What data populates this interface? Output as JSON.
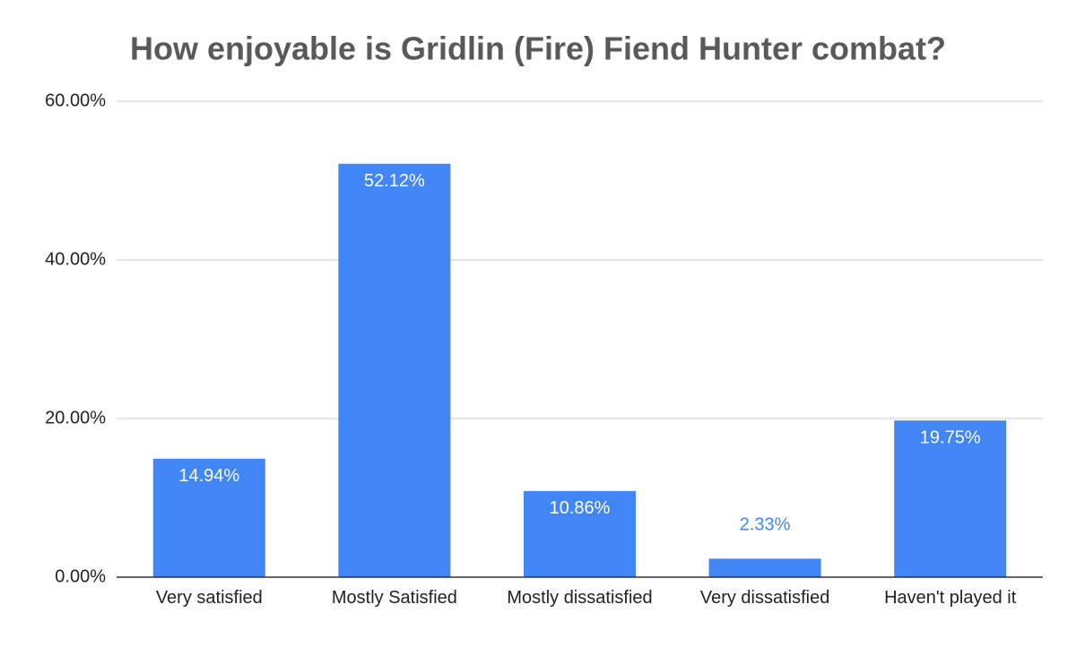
{
  "chart_data": {
    "type": "bar",
    "title": "How enjoyable is Gridlin (Fire) Fiend Hunter combat?",
    "categories": [
      "Very satisfied",
      "Mostly Satisfied",
      "Mostly dissatisfied",
      "Very dissatisfied",
      "Haven't played it"
    ],
    "values": [
      14.94,
      52.12,
      10.86,
      2.33,
      19.75
    ],
    "value_labels": [
      "14.94%",
      "52.12%",
      "10.86%",
      "2.33%",
      "19.75%"
    ],
    "color": "#4285f4",
    "ylim": [
      0,
      60
    ],
    "yticks": [
      {
        "value": 0,
        "label": "0.00%"
      },
      {
        "value": 20,
        "label": "20.00%"
      },
      {
        "value": 40,
        "label": "40.00%"
      },
      {
        "value": 60,
        "label": "60.00%"
      }
    ],
    "grid": true
  }
}
